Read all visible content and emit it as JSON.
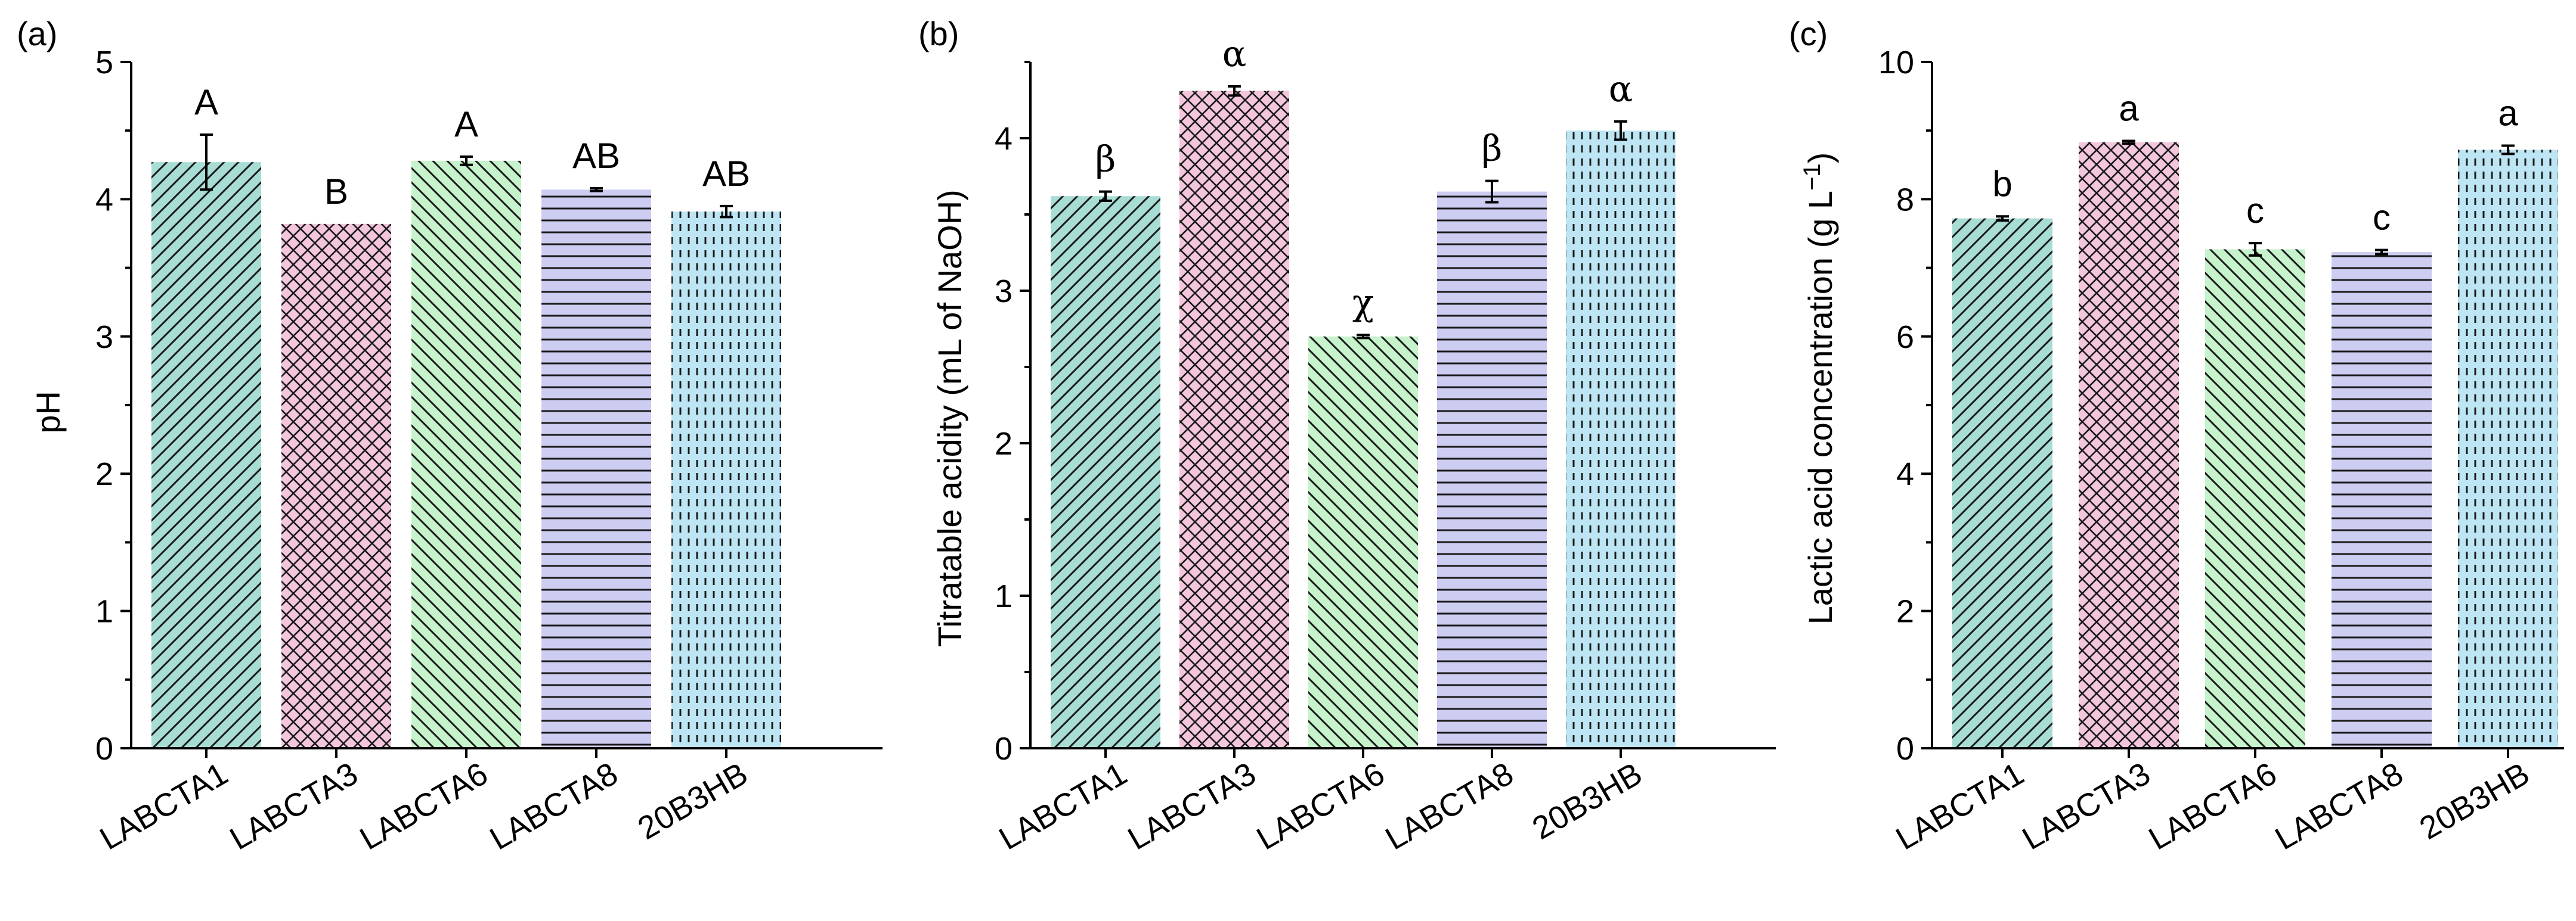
{
  "chart_data": [
    {
      "type": "bar",
      "panel_label": "(a)",
      "categories": [
        "LABCTA1",
        "LABCTA3",
        "LABCTA6",
        "LABCTA8",
        "20B3HB"
      ],
      "values": [
        4.27,
        3.82,
        4.28,
        4.07,
        3.91
      ],
      "errors": [
        0.2,
        0.0,
        0.03,
        0.01,
        0.04
      ],
      "significance": [
        "A",
        "B",
        "A",
        "AB",
        "AB"
      ],
      "ylabel": "pH",
      "xlabel": "",
      "ylim": [
        0,
        5
      ],
      "yticks": [
        "0",
        "1",
        "2",
        "3",
        "4",
        "5"
      ]
    },
    {
      "type": "bar",
      "panel_label": "(b)",
      "categories": [
        "LABCTA1",
        "LABCTA3",
        "LABCTA6",
        "LABCTA8",
        "20B3HB"
      ],
      "values": [
        3.62,
        4.31,
        2.7,
        3.65,
        4.05
      ],
      "errors": [
        0.03,
        0.03,
        0.01,
        0.07,
        0.06
      ],
      "significance": [
        "β",
        "α",
        "χ",
        "β",
        "α"
      ],
      "ylabel": "Titratable acidity (mL of NaOH)",
      "xlabel": "",
      "ylim": [
        0,
        4.5
      ],
      "yticks": [
        "0",
        "1",
        "2",
        "3",
        "4"
      ]
    },
    {
      "type": "bar",
      "panel_label": "(c)",
      "categories": [
        "LABCTA1",
        "LABCTA3",
        "LABCTA6",
        "LABCTA8",
        "20B3HB"
      ],
      "values": [
        7.72,
        8.83,
        7.27,
        7.23,
        8.72
      ],
      "errors": [
        0.03,
        0.02,
        0.09,
        0.03,
        0.06
      ],
      "significance": [
        "b",
        "a",
        "c",
        "c",
        "a"
      ],
      "ylabel": "Lactic acid concentration (g L",
      "ylabel_superscript": "−1",
      "ylabel_close": ")",
      "xlabel": "",
      "ylim": [
        0,
        10
      ],
      "yticks": [
        "0",
        "2",
        "4",
        "6",
        "8",
        "10"
      ]
    }
  ],
  "bar_styles": [
    {
      "fill": "#a8ddd5",
      "hatch": "diag-up"
    },
    {
      "fill": "#f3c6dc",
      "hatch": "crosshatch"
    },
    {
      "fill": "#c6f2cc",
      "hatch": "diag-down"
    },
    {
      "fill": "#cdccf1",
      "hatch": "horizontal"
    },
    {
      "fill": "#bde5f3",
      "hatch": "vertical-dashed"
    }
  ]
}
